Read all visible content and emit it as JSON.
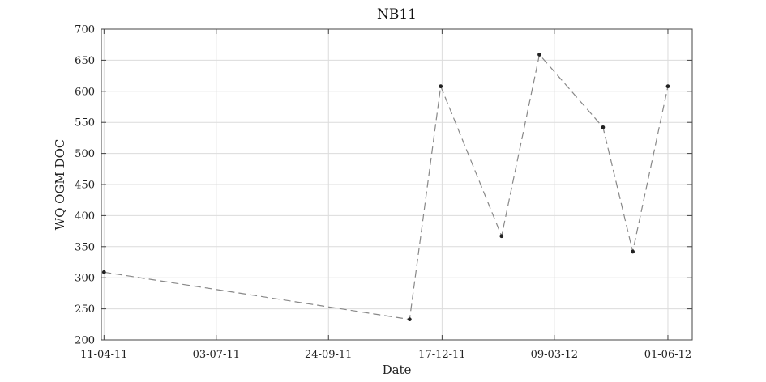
{
  "chart_data": {
    "type": "line",
    "title": "NB11",
    "xlabel": "Date",
    "ylabel": "WQ OGM DOC",
    "x_axis": {
      "type": "date",
      "range": [
        "2011-04-09",
        "2012-06-19"
      ],
      "ticks": [
        {
          "date": "2011-04-11",
          "label": "11-04-11"
        },
        {
          "date": "2011-07-03",
          "label": "03-07-11"
        },
        {
          "date": "2011-09-24",
          "label": "24-09-11"
        },
        {
          "date": "2011-12-17",
          "label": "17-12-11"
        },
        {
          "date": "2012-03-09",
          "label": "09-03-12"
        },
        {
          "date": "2012-06-01",
          "label": "01-06-12"
        }
      ]
    },
    "y_axis": {
      "range": [
        200,
        700
      ],
      "ticks": [
        200,
        250,
        300,
        350,
        400,
        450,
        500,
        550,
        600,
        650,
        700
      ]
    },
    "grid": true,
    "series": [
      {
        "color": "#888888",
        "line_style": "dashed",
        "marker_color": "#222222",
        "points": [
          {
            "x": "2011-04-11",
            "y": 309
          },
          {
            "x": "2011-11-23",
            "y": 233
          },
          {
            "x": "2011-12-16",
            "y": 608
          },
          {
            "x": "2012-01-30",
            "y": 367
          },
          {
            "x": "2012-02-27",
            "y": 659
          },
          {
            "x": "2012-04-14",
            "y": 542
          },
          {
            "x": "2012-05-06",
            "y": 342
          },
          {
            "x": "2012-06-01",
            "y": 608
          }
        ]
      }
    ]
  }
}
